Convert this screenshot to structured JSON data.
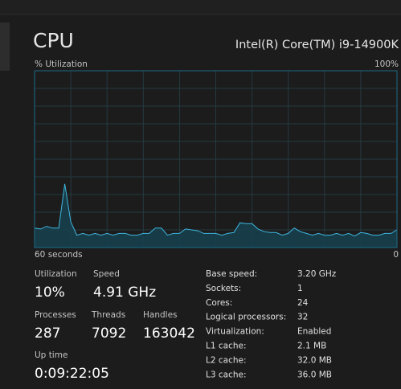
{
  "header": {
    "title": "CPU",
    "processor": "Intel(R) Core(TM) i9-14900K"
  },
  "chart_data": {
    "type": "area",
    "ylabel": "% Utilization",
    "x": [
      60,
      59,
      58,
      57,
      56,
      55,
      54,
      53,
      52,
      51,
      50,
      49,
      48,
      47,
      46,
      45,
      44,
      43,
      42,
      41,
      40,
      39,
      38,
      37,
      36,
      35,
      34,
      33,
      32,
      31,
      30,
      29,
      28,
      27,
      26,
      25,
      24,
      23,
      22,
      21,
      20,
      19,
      18,
      17,
      16,
      15,
      14,
      13,
      12,
      11,
      10,
      9,
      8,
      7,
      6,
      5,
      4,
      3,
      2,
      1,
      0
    ],
    "values": [
      11,
      10.5,
      12,
      11,
      11,
      36,
      14.5,
      7,
      8,
      7,
      8,
      7,
      8,
      7,
      8,
      8,
      7,
      7,
      8,
      8,
      11,
      11,
      7,
      8,
      8,
      10.5,
      10,
      9.5,
      8,
      8,
      8,
      7,
      8,
      8.5,
      14,
      13.5,
      13.5,
      10.5,
      9,
      8.5,
      8.5,
      7,
      8,
      11,
      9,
      8,
      7,
      8,
      7,
      7,
      8,
      7,
      8,
      6.5,
      8.5,
      8,
      7,
      7,
      8,
      8,
      10
    ],
    "xlim": [
      60,
      0
    ],
    "xticks": [
      {
        "value": 60,
        "label": "60 seconds"
      },
      0
    ],
    "ylim": [
      0,
      100
    ],
    "yticks": [
      {
        "value": 100,
        "label": "100%"
      }
    ],
    "ygrid": [
      10,
      20,
      30,
      40,
      50,
      60,
      70,
      80,
      90
    ],
    "xgrid": [
      54,
      48,
      42,
      36,
      30,
      24,
      18,
      12,
      6
    ],
    "color": "#3fb4dc",
    "grid": true
  },
  "stats": [
    {
      "label": "Utilization",
      "value": "10%"
    },
    {
      "label": "Speed",
      "value": "4.91 GHz"
    },
    {
      "label": "Processes",
      "value": "287"
    },
    {
      "label": "Threads",
      "value": "7092"
    },
    {
      "label": "Handles",
      "value": "163042"
    },
    {
      "label": "Up time",
      "value": "0:09:22:05"
    }
  ],
  "details": [
    [
      "Base speed:",
      "3.20 GHz"
    ],
    [
      "Sockets:",
      "1"
    ],
    [
      "Cores:",
      "24"
    ],
    [
      "Logical processors:",
      "32"
    ],
    [
      "Virtualization:",
      "Enabled"
    ],
    [
      "L1 cache:",
      "2.1 MB"
    ],
    [
      "L2 cache:",
      "32.0 MB"
    ],
    [
      "L3 cache:",
      "36.0 MB"
    ]
  ]
}
